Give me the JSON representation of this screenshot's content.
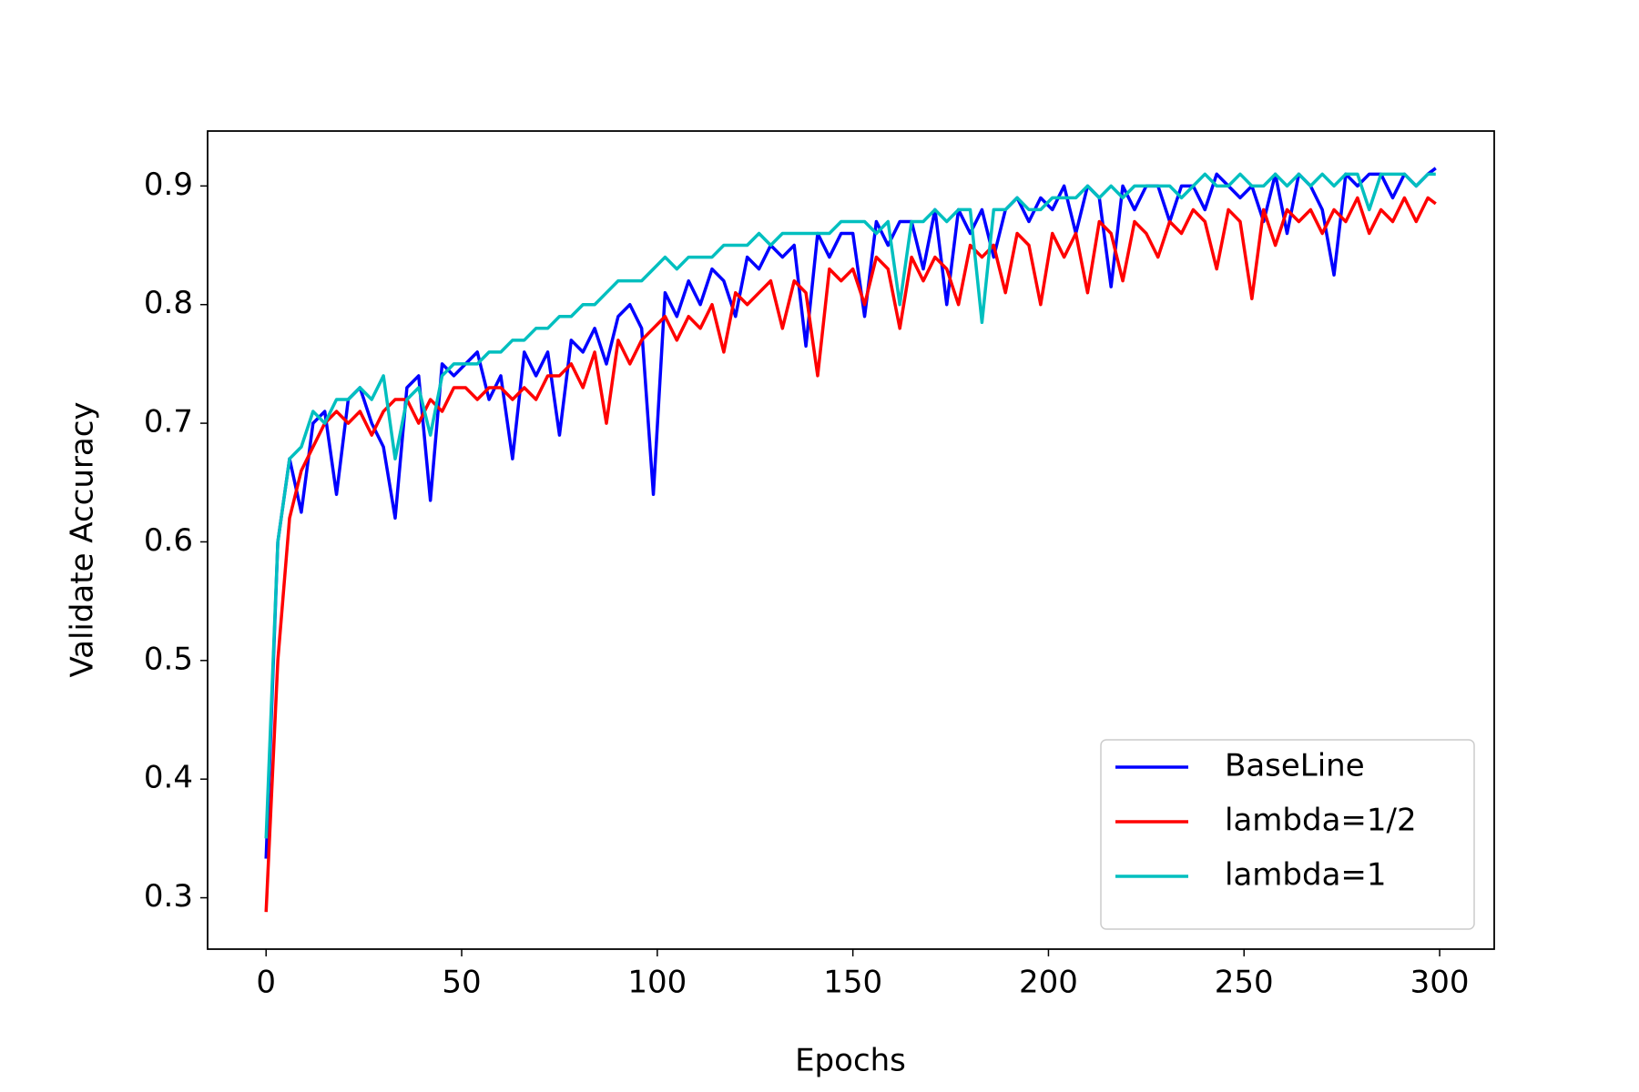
{
  "chart_data": {
    "type": "line",
    "xlabel": "Epochs",
    "ylabel": "Validate Accuracy",
    "x": [
      0,
      3,
      6,
      9,
      12,
      15,
      18,
      21,
      24,
      27,
      30,
      33,
      36,
      39,
      42,
      45,
      48,
      51,
      54,
      57,
      60,
      63,
      66,
      69,
      72,
      75,
      78,
      81,
      84,
      87,
      90,
      93,
      96,
      99,
      102,
      105,
      108,
      111,
      114,
      117,
      120,
      123,
      126,
      129,
      132,
      135,
      138,
      141,
      144,
      147,
      150,
      153,
      156,
      159,
      162,
      165,
      168,
      171,
      174,
      177,
      180,
      183,
      186,
      189,
      192,
      195,
      198,
      201,
      204,
      207,
      210,
      213,
      216,
      219,
      222,
      225,
      228,
      231,
      234,
      237,
      240,
      243,
      246,
      249,
      252,
      255,
      258,
      261,
      264,
      267,
      270,
      273,
      276,
      279,
      282,
      285,
      288,
      291,
      294,
      297,
      299
    ],
    "series": [
      {
        "name": "BaseLine",
        "color": "#0000ff",
        "values": [
          0.333,
          0.6,
          0.67,
          0.625,
          0.7,
          0.71,
          0.64,
          0.72,
          0.73,
          0.7,
          0.68,
          0.62,
          0.73,
          0.74,
          0.635,
          0.75,
          0.74,
          0.75,
          0.76,
          0.72,
          0.74,
          0.67,
          0.76,
          0.74,
          0.76,
          0.69,
          0.77,
          0.76,
          0.78,
          0.75,
          0.79,
          0.8,
          0.78,
          0.64,
          0.81,
          0.79,
          0.82,
          0.8,
          0.83,
          0.82,
          0.79,
          0.84,
          0.83,
          0.85,
          0.84,
          0.85,
          0.765,
          0.86,
          0.84,
          0.86,
          0.86,
          0.79,
          0.87,
          0.85,
          0.87,
          0.87,
          0.83,
          0.88,
          0.8,
          0.88,
          0.86,
          0.88,
          0.84,
          0.88,
          0.89,
          0.87,
          0.89,
          0.88,
          0.9,
          0.86,
          0.9,
          0.89,
          0.815,
          0.9,
          0.88,
          0.9,
          0.9,
          0.87,
          0.9,
          0.9,
          0.88,
          0.91,
          0.9,
          0.89,
          0.9,
          0.87,
          0.91,
          0.86,
          0.91,
          0.9,
          0.88,
          0.825,
          0.91,
          0.9,
          0.91,
          0.91,
          0.89,
          0.91,
          0.9,
          0.91,
          0.915
        ]
      },
      {
        "name": "lambda=1/2",
        "color": "#ff0000",
        "values": [
          0.288,
          0.5,
          0.62,
          0.66,
          0.68,
          0.7,
          0.71,
          0.7,
          0.71,
          0.69,
          0.71,
          0.72,
          0.72,
          0.7,
          0.72,
          0.71,
          0.73,
          0.73,
          0.72,
          0.73,
          0.73,
          0.72,
          0.73,
          0.72,
          0.74,
          0.74,
          0.75,
          0.73,
          0.76,
          0.7,
          0.77,
          0.75,
          0.77,
          0.78,
          0.79,
          0.77,
          0.79,
          0.78,
          0.8,
          0.76,
          0.81,
          0.8,
          0.81,
          0.82,
          0.78,
          0.82,
          0.81,
          0.74,
          0.83,
          0.82,
          0.83,
          0.8,
          0.84,
          0.83,
          0.78,
          0.84,
          0.82,
          0.84,
          0.83,
          0.8,
          0.85,
          0.84,
          0.85,
          0.81,
          0.86,
          0.85,
          0.8,
          0.86,
          0.84,
          0.86,
          0.81,
          0.87,
          0.86,
          0.82,
          0.87,
          0.86,
          0.84,
          0.87,
          0.86,
          0.88,
          0.87,
          0.83,
          0.88,
          0.87,
          0.805,
          0.88,
          0.85,
          0.88,
          0.87,
          0.88,
          0.86,
          0.88,
          0.87,
          0.89,
          0.86,
          0.88,
          0.87,
          0.89,
          0.87,
          0.89,
          0.885
        ]
      },
      {
        "name": "lambda=1",
        "color": "#00bfbf",
        "values": [
          0.35,
          0.6,
          0.67,
          0.68,
          0.71,
          0.7,
          0.72,
          0.72,
          0.73,
          0.72,
          0.74,
          0.67,
          0.72,
          0.73,
          0.69,
          0.74,
          0.75,
          0.75,
          0.75,
          0.76,
          0.76,
          0.77,
          0.77,
          0.78,
          0.78,
          0.79,
          0.79,
          0.8,
          0.8,
          0.81,
          0.82,
          0.82,
          0.82,
          0.83,
          0.84,
          0.83,
          0.84,
          0.84,
          0.84,
          0.85,
          0.85,
          0.85,
          0.86,
          0.85,
          0.86,
          0.86,
          0.86,
          0.86,
          0.86,
          0.87,
          0.87,
          0.87,
          0.86,
          0.87,
          0.8,
          0.87,
          0.87,
          0.88,
          0.87,
          0.88,
          0.88,
          0.785,
          0.88,
          0.88,
          0.89,
          0.88,
          0.88,
          0.89,
          0.89,
          0.89,
          0.9,
          0.89,
          0.9,
          0.89,
          0.9,
          0.9,
          0.9,
          0.9,
          0.89,
          0.9,
          0.91,
          0.9,
          0.9,
          0.91,
          0.9,
          0.9,
          0.91,
          0.9,
          0.91,
          0.9,
          0.91,
          0.9,
          0.91,
          0.91,
          0.88,
          0.91,
          0.91,
          0.91,
          0.9,
          0.91,
          0.91
        ]
      }
    ],
    "xlim": [
      -14.95,
      313.95
    ],
    "xticks": [
      0,
      50,
      100,
      150,
      200,
      250,
      300
    ],
    "ylim": [
      0.2567,
      0.9463
    ],
    "yticks": [
      0.3,
      0.4,
      0.5,
      0.6,
      0.7,
      0.8,
      0.9
    ],
    "grid": false,
    "legend": "lower right"
  }
}
